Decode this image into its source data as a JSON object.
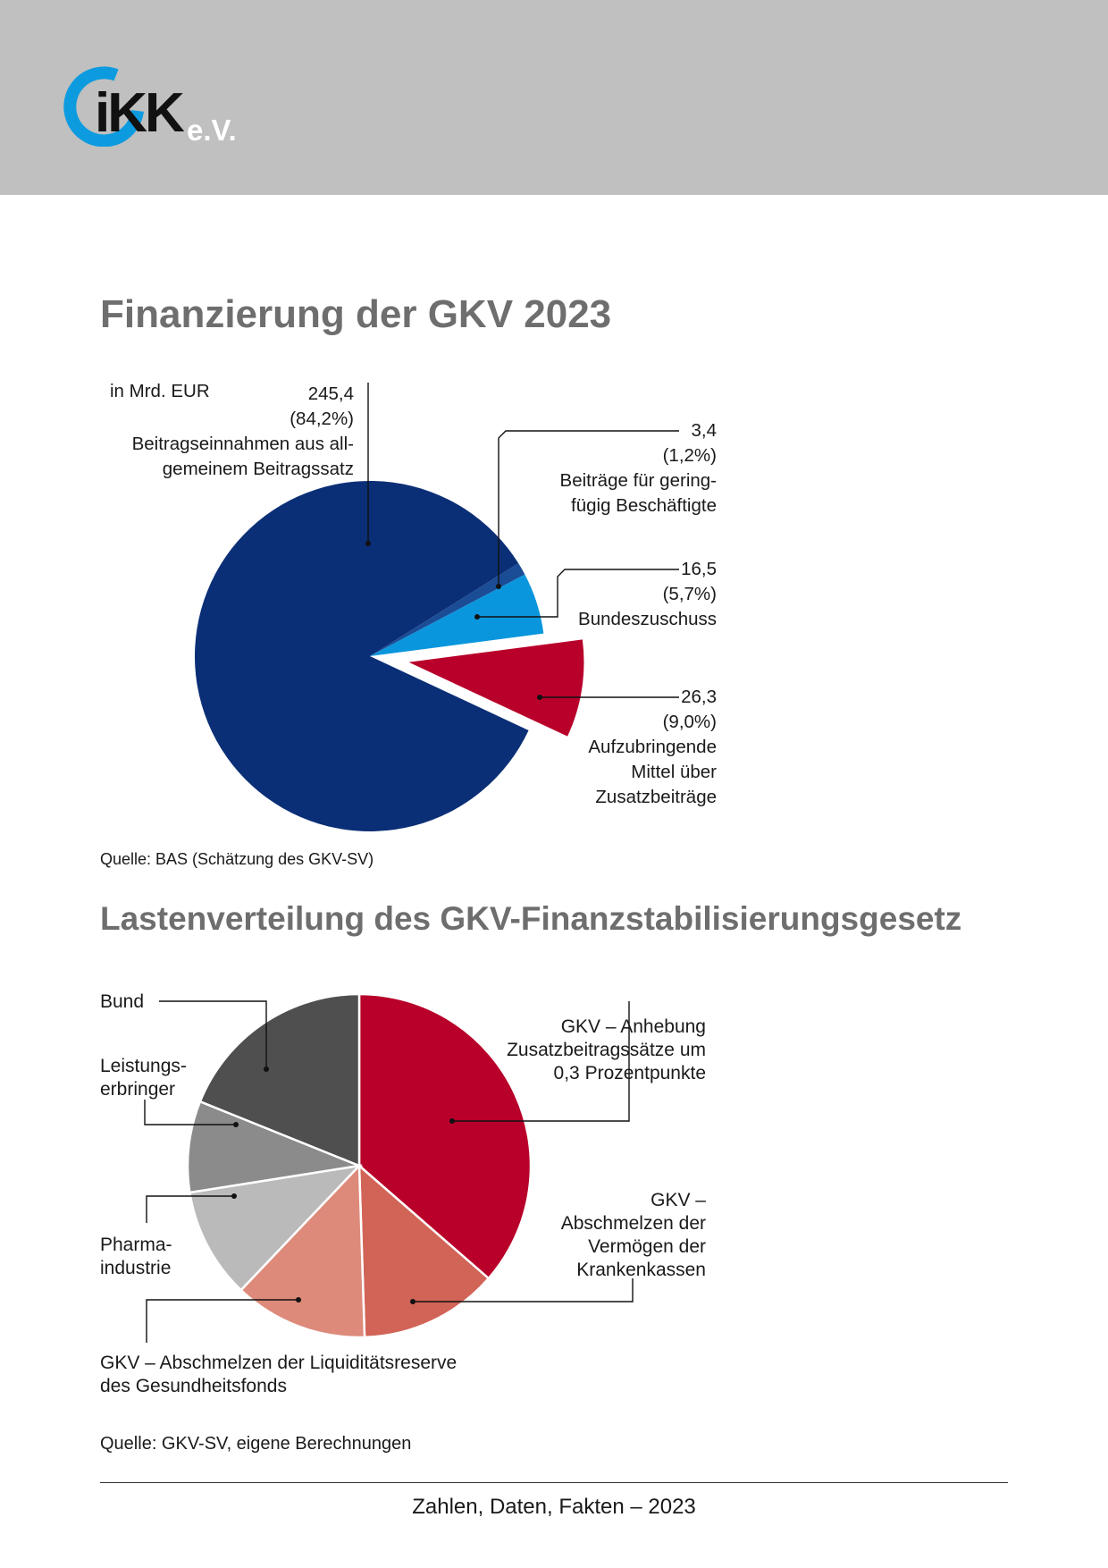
{
  "header": {
    "logo_text": "iKK",
    "logo_suffix": "e.V.",
    "band_color": "#bfc0bf",
    "logo_ring_color": "#0d9be0"
  },
  "chart_data": [
    {
      "type": "pie",
      "title": "Finanzierung der GKV 2023",
      "unit_note": "in Mrd. EUR",
      "source": "Quelle: BAS (Schätzung des GKV-SV)",
      "slices": [
        {
          "value": 245.4,
          "value_label": "245,4",
          "percent_label": "(84,2%)",
          "label_lines": [
            "Beitragseinnahmen aus all-",
            "gemeinem Beitragssatz"
          ],
          "color": "#0b2f76"
        },
        {
          "value": 3.4,
          "value_label": "3,4",
          "percent_label": "(1,2%)",
          "label_lines": [
            "Beiträge für gering-",
            "fügig Beschäftigte"
          ],
          "color": "#1b4c96"
        },
        {
          "value": 16.5,
          "value_label": "16,5",
          "percent_label": "(5,7%)",
          "label_lines": [
            "Bundeszuschuss"
          ],
          "color": "#0a96dd"
        },
        {
          "value": 26.3,
          "value_label": "26,3",
          "percent_label": "(9,0%)",
          "label_lines": [
            "Aufzubringende",
            "Mittel über",
            "Zusatzbeiträge"
          ],
          "color": "#b8002a",
          "exploded": true
        }
      ]
    },
    {
      "type": "pie",
      "title": "Lastenverteilung des GKV-Finanzstabilisierungsgesetz",
      "source": "Quelle: GKV-SV, eigene Berechnungen",
      "slices": [
        {
          "value": 36.4,
          "label_lines": [
            "GKV – Anhebung",
            "Zusatzbeitragssätze um",
            "0,3 Prozentpunkte"
          ],
          "color": "#b8002a"
        },
        {
          "value": 13.1,
          "label_lines": [
            "GKV –",
            "Abschmelzen der",
            "Vermögen der",
            "Krankenkassen"
          ],
          "color": "#d16457"
        },
        {
          "value": 12.6,
          "label_lines": [
            "GKV – Abschmelzen der Liquiditätsreserve",
            "des Gesundheitsfonds"
          ],
          "color": "#dd8a7a"
        },
        {
          "value": 10.4,
          "label_lines": [
            "Pharma-",
            "industrie"
          ],
          "color": "#bababa"
        },
        {
          "value": 8.6,
          "label_lines": [
            "Leistungs-",
            "erbringer"
          ],
          "color": "#8a8b8a"
        },
        {
          "value": 18.9,
          "label_lines": [
            "Bund"
          ],
          "color": "#4e4f4e"
        }
      ]
    }
  ],
  "footer": {
    "text": "Zahlen, Daten, Fakten – 2023"
  }
}
